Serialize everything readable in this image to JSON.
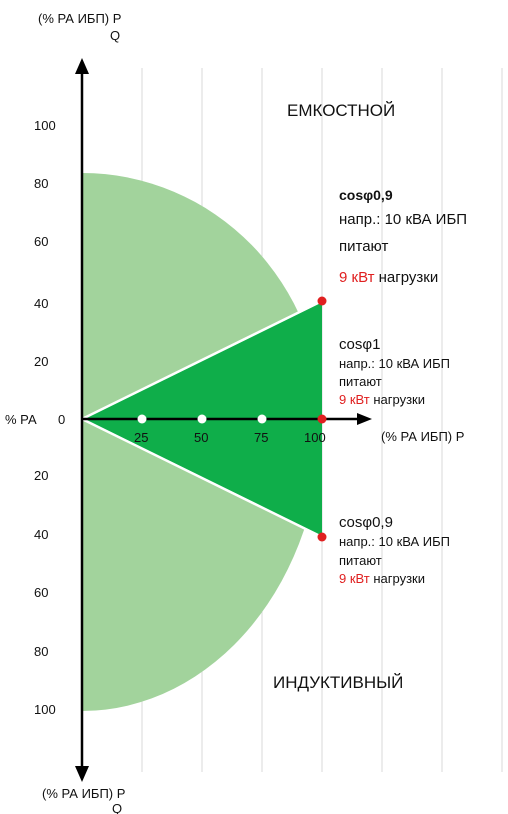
{
  "colors": {
    "light_green": "#a2d39c",
    "dark_green": "#0fae4a",
    "accent_red": "#e02020",
    "white_line": "#ffffff",
    "grid": "#d9d9d9",
    "axis": "#000000"
  },
  "axes": {
    "top_label_line1": "(% РА ИБП) P",
    "top_label_line2": "Q",
    "bottom_label_line1": "(% РА ИБП) P",
    "bottom_label_line2": "Q",
    "x_label": "(% РА ИБП) P",
    "origin_label": "% РА",
    "origin_zero": "0",
    "y_ticks_upper": [
      "100",
      "80",
      "60",
      "40",
      "20"
    ],
    "y_ticks_lower": [
      "20",
      "40",
      "60",
      "80",
      "100"
    ],
    "x_ticks": [
      "25",
      "50",
      "75",
      "100"
    ]
  },
  "regions": {
    "capacitive": "ЕМКОСТНОЙ",
    "inductive": "ИНДУКТИВНЫЙ"
  },
  "notes": {
    "upper": {
      "head": "cosφ0,9",
      "line1": "напр.: 10 кВА ИБП",
      "line2": "питают",
      "line3_red": "9 кВт",
      "line3_rest": "нагрузки"
    },
    "middle": {
      "head": "cosφ1",
      "line1": "напр.: 10 кВА ИБП",
      "line2": "питают",
      "line3_red": "9 кВт",
      "line3_rest": "нагрузки"
    },
    "lower": {
      "head": "cosφ0,9",
      "line1": "напр.: 10 кВА ИБП",
      "line2": "питают",
      "line3_red": "9 кВт",
      "line3_rest": "нагрузки"
    }
  }
}
